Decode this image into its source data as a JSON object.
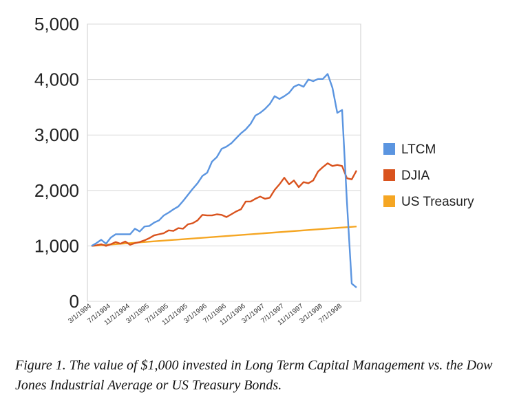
{
  "chart_data": {
    "type": "line",
    "x_ticks": [
      "3/1/1994",
      "7/1/1994",
      "11/1/1994",
      "3/1/1995",
      "7/1/1995",
      "11/1/1995",
      "3/1/1996",
      "7/1/1996",
      "11/1/1996",
      "3/1/1997",
      "7/1/1997",
      "11/1/1997",
      "3/1/1998",
      "7/1/1998"
    ],
    "y_ticks": [
      "0",
      "1,000",
      "2,000",
      "3,000",
      "4,000",
      "5,000"
    ],
    "ylim": [
      0,
      5000
    ],
    "x_start": "1994-03",
    "grid": "horizontal lines on",
    "legend_position": "right",
    "series": [
      {
        "name": "LTCM",
        "color": "#5b95e0",
        "points": [
          [
            "1994-03",
            1000
          ],
          [
            "1994-04",
            1050
          ],
          [
            "1994-05",
            1110
          ],
          [
            "1994-06",
            1040
          ],
          [
            "1994-07",
            1150
          ],
          [
            "1994-08",
            1210
          ],
          [
            "1994-09",
            1210
          ],
          [
            "1994-10",
            1210
          ],
          [
            "1994-11",
            1210
          ],
          [
            "1994-12",
            1310
          ],
          [
            "1995-01",
            1260
          ],
          [
            "1995-02",
            1350
          ],
          [
            "1995-03",
            1360
          ],
          [
            "1995-04",
            1420
          ],
          [
            "1995-05",
            1460
          ],
          [
            "1995-06",
            1550
          ],
          [
            "1995-07",
            1600
          ],
          [
            "1995-08",
            1660
          ],
          [
            "1995-09",
            1710
          ],
          [
            "1995-10",
            1810
          ],
          [
            "1995-11",
            1920
          ],
          [
            "1995-12",
            2030
          ],
          [
            "1996-01",
            2130
          ],
          [
            "1996-02",
            2260
          ],
          [
            "1996-03",
            2320
          ],
          [
            "1996-04",
            2520
          ],
          [
            "1996-05",
            2600
          ],
          [
            "1996-06",
            2750
          ],
          [
            "1996-07",
            2790
          ],
          [
            "1996-08",
            2850
          ],
          [
            "1996-09",
            2940
          ],
          [
            "1996-10",
            3030
          ],
          [
            "1996-11",
            3100
          ],
          [
            "1996-12",
            3200
          ],
          [
            "1997-01",
            3350
          ],
          [
            "1997-02",
            3400
          ],
          [
            "1997-03",
            3470
          ],
          [
            "1997-04",
            3560
          ],
          [
            "1997-05",
            3700
          ],
          [
            "1997-06",
            3650
          ],
          [
            "1997-07",
            3700
          ],
          [
            "1997-08",
            3760
          ],
          [
            "1997-09",
            3870
          ],
          [
            "1997-10",
            3910
          ],
          [
            "1997-11",
            3870
          ],
          [
            "1997-12",
            4000
          ],
          [
            "1998-01",
            3970
          ],
          [
            "1998-02",
            4010
          ],
          [
            "1998-03",
            4010
          ],
          [
            "1998-04",
            4100
          ],
          [
            "1998-05",
            3850
          ],
          [
            "1998-06",
            3400
          ],
          [
            "1998-07",
            3450
          ],
          [
            "1998-08",
            1800
          ],
          [
            "1998-09",
            320
          ],
          [
            "1998-10",
            250
          ]
        ]
      },
      {
        "name": "DJIA",
        "color": "#d9531e",
        "points": [
          [
            "1994-03",
            1000
          ],
          [
            "1994-04",
            1010
          ],
          [
            "1994-05",
            1030
          ],
          [
            "1994-06",
            1000
          ],
          [
            "1994-07",
            1030
          ],
          [
            "1994-08",
            1070
          ],
          [
            "1994-09",
            1040
          ],
          [
            "1994-10",
            1080
          ],
          [
            "1994-11",
            1020
          ],
          [
            "1994-12",
            1050
          ],
          [
            "1995-01",
            1070
          ],
          [
            "1995-02",
            1100
          ],
          [
            "1995-03",
            1140
          ],
          [
            "1995-04",
            1190
          ],
          [
            "1995-05",
            1210
          ],
          [
            "1995-06",
            1230
          ],
          [
            "1995-07",
            1280
          ],
          [
            "1995-08",
            1270
          ],
          [
            "1995-09",
            1320
          ],
          [
            "1995-10",
            1310
          ],
          [
            "1995-11",
            1390
          ],
          [
            "1995-12",
            1410
          ],
          [
            "1996-01",
            1460
          ],
          [
            "1996-02",
            1560
          ],
          [
            "1996-03",
            1550
          ],
          [
            "1996-04",
            1550
          ],
          [
            "1996-05",
            1570
          ],
          [
            "1996-06",
            1560
          ],
          [
            "1996-07",
            1520
          ],
          [
            "1996-08",
            1570
          ],
          [
            "1996-09",
            1620
          ],
          [
            "1996-10",
            1660
          ],
          [
            "1996-11",
            1800
          ],
          [
            "1996-12",
            1800
          ],
          [
            "1997-01",
            1850
          ],
          [
            "1997-02",
            1890
          ],
          [
            "1997-03",
            1850
          ],
          [
            "1997-04",
            1870
          ],
          [
            "1997-05",
            2010
          ],
          [
            "1997-06",
            2110
          ],
          [
            "1997-07",
            2230
          ],
          [
            "1997-08",
            2110
          ],
          [
            "1997-09",
            2180
          ],
          [
            "1997-10",
            2060
          ],
          [
            "1997-11",
            2150
          ],
          [
            "1997-12",
            2130
          ],
          [
            "1998-01",
            2180
          ],
          [
            "1998-02",
            2340
          ],
          [
            "1998-03",
            2420
          ],
          [
            "1998-04",
            2490
          ],
          [
            "1998-05",
            2440
          ],
          [
            "1998-06",
            2460
          ],
          [
            "1998-07",
            2440
          ],
          [
            "1998-08",
            2220
          ],
          [
            "1998-09",
            2200
          ],
          [
            "1998-10",
            2360
          ]
        ]
      },
      {
        "name": "US Treasury",
        "color": "#f5a623",
        "points": [
          [
            "1994-03",
            1000
          ],
          [
            "1998-10",
            1350
          ]
        ]
      }
    ]
  },
  "caption": "Figure 1. The value of $1,000 invested in Long Term Capital Management vs. the Dow Jones Industrial Average or US Treasury Bonds."
}
